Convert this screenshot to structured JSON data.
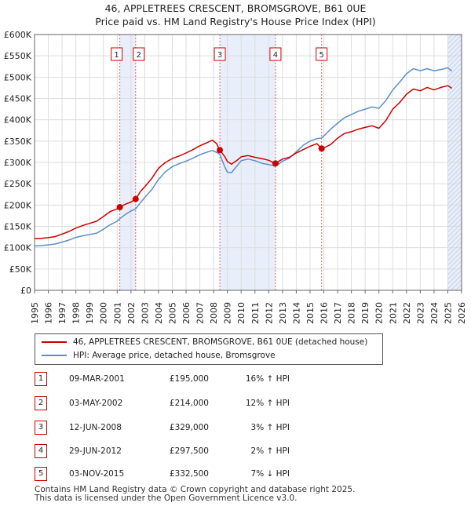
{
  "title": "46, APPLETREES CRESCENT, BROMSGROVE, B61 0UE",
  "subtitle": "Price paid vs. HM Land Registry's House Price Index (HPI)",
  "colors": {
    "property": "#cc0000",
    "hpi": "#5b8fc9",
    "shade": "#e8eefa"
  },
  "chart_data": {
    "type": "line",
    "xlim": [
      1995,
      2026
    ],
    "ylim": [
      0,
      600000
    ],
    "x_ticks": [
      "1995",
      "1996",
      "1997",
      "1998",
      "1999",
      "2000",
      "2001",
      "2002",
      "2003",
      "2004",
      "2005",
      "2006",
      "2007",
      "2008",
      "2009",
      "2010",
      "2011",
      "2012",
      "2013",
      "2014",
      "2015",
      "2016",
      "2017",
      "2018",
      "2019",
      "2020",
      "2021",
      "2022",
      "2023",
      "2024",
      "2025",
      "2026"
    ],
    "y_ticks": [
      {
        "value": 0,
        "label": "£0"
      },
      {
        "value": 50000,
        "label": "£50K"
      },
      {
        "value": 100000,
        "label": "£100K"
      },
      {
        "value": 150000,
        "label": "£150K"
      },
      {
        "value": 200000,
        "label": "£200K"
      },
      {
        "value": 250000,
        "label": "£250K"
      },
      {
        "value": 300000,
        "label": "£300K"
      },
      {
        "value": 350000,
        "label": "£350K"
      },
      {
        "value": 400000,
        "label": "£400K"
      },
      {
        "value": 450000,
        "label": "£450K"
      },
      {
        "value": 500000,
        "label": "£500K"
      },
      {
        "value": 550000,
        "label": "£550K"
      },
      {
        "value": 600000,
        "label": "£600K"
      }
    ],
    "grid": true,
    "shaded_ranges": [
      [
        2001.19,
        2002.34
      ],
      [
        2008.45,
        2012.49
      ],
      [
        2025.0,
        2026.0
      ]
    ],
    "series": [
      {
        "name": "46, APPLETREES CRESCENT, BROMSGROVE, B61 0UE (detached house)",
        "color": "#cc0000",
        "points": [
          [
            1995.0,
            121000
          ],
          [
            1995.5,
            122000
          ],
          [
            1996.0,
            123500
          ],
          [
            1996.5,
            126000
          ],
          [
            1997.0,
            132000
          ],
          [
            1997.5,
            138000
          ],
          [
            1998.0,
            146000
          ],
          [
            1998.5,
            152000
          ],
          [
            1999.0,
            157000
          ],
          [
            1999.5,
            162000
          ],
          [
            2000.0,
            173000
          ],
          [
            2000.5,
            185000
          ],
          [
            2001.0,
            191000
          ],
          [
            2001.19,
            195000
          ],
          [
            2001.6,
            202000
          ],
          [
            2002.0,
            207000
          ],
          [
            2002.34,
            214000
          ],
          [
            2002.7,
            232000
          ],
          [
            2003.0,
            243000
          ],
          [
            2003.5,
            262000
          ],
          [
            2004.0,
            286000
          ],
          [
            2004.5,
            300000
          ],
          [
            2005.0,
            309000
          ],
          [
            2005.5,
            315000
          ],
          [
            2006.0,
            322000
          ],
          [
            2006.5,
            330000
          ],
          [
            2007.0,
            339000
          ],
          [
            2007.5,
            346000
          ],
          [
            2007.9,
            352000
          ],
          [
            2008.2,
            345000
          ],
          [
            2008.45,
            329000
          ],
          [
            2008.8,
            314000
          ],
          [
            2009.0,
            302000
          ],
          [
            2009.3,
            296000
          ],
          [
            2009.7,
            305000
          ],
          [
            2010.0,
            313000
          ],
          [
            2010.5,
            316000
          ],
          [
            2011.0,
            312000
          ],
          [
            2011.5,
            309000
          ],
          [
            2012.0,
            305000
          ],
          [
            2012.49,
            297500
          ],
          [
            2012.8,
            304000
          ],
          [
            2013.0,
            308000
          ],
          [
            2013.5,
            312000
          ],
          [
            2014.0,
            322000
          ],
          [
            2014.5,
            330000
          ],
          [
            2015.0,
            338000
          ],
          [
            2015.5,
            344000
          ],
          [
            2015.84,
            332500
          ],
          [
            2016.0,
            334000
          ],
          [
            2016.5,
            342000
          ],
          [
            2017.0,
            357000
          ],
          [
            2017.5,
            368000
          ],
          [
            2018.0,
            372000
          ],
          [
            2018.5,
            378000
          ],
          [
            2019.0,
            382000
          ],
          [
            2019.5,
            386000
          ],
          [
            2020.0,
            380000
          ],
          [
            2020.5,
            398000
          ],
          [
            2021.0,
            425000
          ],
          [
            2021.5,
            440000
          ],
          [
            2022.0,
            460000
          ],
          [
            2022.5,
            472000
          ],
          [
            2023.0,
            468000
          ],
          [
            2023.5,
            476000
          ],
          [
            2024.0,
            470000
          ],
          [
            2024.5,
            476000
          ],
          [
            2025.0,
            480000
          ],
          [
            2025.3,
            474000
          ]
        ]
      },
      {
        "name": "HPI: Average price, detached house, Bromsgrove",
        "color": "#5b8fc9",
        "points": [
          [
            1995.0,
            104000
          ],
          [
            1995.5,
            105000
          ],
          [
            1996.0,
            106500
          ],
          [
            1996.5,
            108500
          ],
          [
            1997.0,
            113000
          ],
          [
            1997.5,
            118000
          ],
          [
            1998.0,
            124000
          ],
          [
            1998.5,
            128000
          ],
          [
            1999.0,
            131000
          ],
          [
            1999.5,
            134000
          ],
          [
            2000.0,
            143000
          ],
          [
            2000.5,
            154000
          ],
          [
            2001.0,
            162000
          ],
          [
            2001.19,
            168000
          ],
          [
            2001.6,
            178000
          ],
          [
            2002.0,
            186000
          ],
          [
            2002.34,
            191000
          ],
          [
            2002.7,
            206000
          ],
          [
            2003.0,
            218000
          ],
          [
            2003.5,
            236000
          ],
          [
            2004.0,
            260000
          ],
          [
            2004.5,
            278000
          ],
          [
            2005.0,
            290000
          ],
          [
            2005.5,
            297000
          ],
          [
            2006.0,
            303000
          ],
          [
            2006.5,
            310000
          ],
          [
            2007.0,
            318000
          ],
          [
            2007.5,
            324000
          ],
          [
            2007.9,
            328000
          ],
          [
            2008.2,
            324000
          ],
          [
            2008.45,
            319000
          ],
          [
            2008.8,
            290000
          ],
          [
            2009.0,
            277000
          ],
          [
            2009.3,
            276000
          ],
          [
            2009.7,
            292000
          ],
          [
            2010.0,
            304000
          ],
          [
            2010.5,
            308000
          ],
          [
            2011.0,
            304000
          ],
          [
            2011.5,
            298000
          ],
          [
            2012.0,
            295000
          ],
          [
            2012.49,
            291000
          ],
          [
            2012.8,
            298000
          ],
          [
            2013.0,
            303000
          ],
          [
            2013.5,
            310000
          ],
          [
            2014.0,
            325000
          ],
          [
            2014.5,
            340000
          ],
          [
            2015.0,
            350000
          ],
          [
            2015.5,
            356000
          ],
          [
            2015.84,
            357000
          ],
          [
            2016.0,
            362000
          ],
          [
            2016.5,
            378000
          ],
          [
            2017.0,
            392000
          ],
          [
            2017.5,
            405000
          ],
          [
            2018.0,
            412000
          ],
          [
            2018.5,
            420000
          ],
          [
            2019.0,
            425000
          ],
          [
            2019.5,
            430000
          ],
          [
            2020.0,
            427000
          ],
          [
            2020.5,
            445000
          ],
          [
            2021.0,
            470000
          ],
          [
            2021.5,
            488000
          ],
          [
            2022.0,
            508000
          ],
          [
            2022.5,
            520000
          ],
          [
            2023.0,
            515000
          ],
          [
            2023.5,
            520000
          ],
          [
            2024.0,
            515000
          ],
          [
            2024.5,
            518000
          ],
          [
            2025.0,
            522000
          ],
          [
            2025.3,
            514000
          ]
        ]
      }
    ],
    "sales": [
      {
        "n": "1",
        "x": 2001.19,
        "price": 195000,
        "date": "09-MAR-2001",
        "price_label": "£195,000",
        "hpi_label": "16% ↑ HPI"
      },
      {
        "n": "2",
        "x": 2002.34,
        "price": 214000,
        "date": "03-MAY-2002",
        "price_label": "£214,000",
        "hpi_label": "12% ↑ HPI"
      },
      {
        "n": "3",
        "x": 2008.45,
        "price": 329000,
        "date": "12-JUN-2008",
        "price_label": "£329,000",
        "hpi_label": "3% ↑ HPI"
      },
      {
        "n": "4",
        "x": 2012.49,
        "price": 297500,
        "date": "29-JUN-2012",
        "price_label": "£297,500",
        "hpi_label": "2% ↑ HPI"
      },
      {
        "n": "5",
        "x": 2015.84,
        "price": 332500,
        "date": "03-NOV-2015",
        "price_label": "£332,500",
        "hpi_label": "7% ↓ HPI"
      }
    ]
  },
  "legend": {
    "property_label": "46, APPLETREES CRESCENT, BROMSGROVE, B61 0UE (detached house)",
    "hpi_label": "HPI: Average price, detached house, Bromsgrove"
  },
  "footer": {
    "line1": "Contains HM Land Registry data © Crown copyright and database right 2025.",
    "line2": "This data is licensed under the Open Government Licence v3.0."
  }
}
